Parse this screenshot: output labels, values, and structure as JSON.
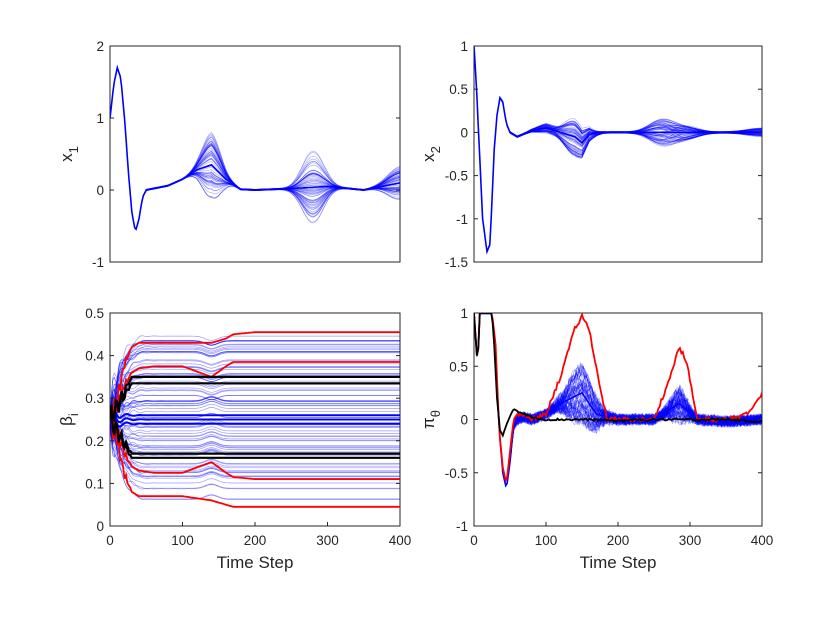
{
  "chart_data": [
    {
      "type": "line",
      "panel": "top-left",
      "xlabel": "",
      "ylabel": "x",
      "ylabel_sub": "1",
      "xlim": [
        0,
        400
      ],
      "ylim": [
        -1,
        2
      ],
      "xticks": [],
      "yticks": [
        "-1",
        "0",
        "1",
        "2"
      ],
      "grid": false,
      "series": [
        {
          "color": "#0000ff",
          "role": "ensemble (many thin trajectories)",
          "x": [
            0,
            5,
            10,
            15,
            20,
            25,
            30,
            35,
            40,
            45,
            50,
            60,
            80,
            100,
            120,
            140,
            160,
            180,
            200,
            250,
            300,
            350,
            400
          ],
          "y": [
            1.0,
            1.45,
            1.7,
            1.55,
            1.0,
            0.3,
            -0.3,
            -0.58,
            -0.4,
            -0.1,
            0.0,
            0.02,
            0.06,
            0.15,
            0.28,
            0.35,
            0.15,
            0.01,
            0.0,
            0.02,
            0.05,
            0.0,
            0.1
          ],
          "spread_peaks": [
            [
              140,
              0.85
            ],
            [
              280,
              0.6
            ],
            [
              400,
              0.35
            ]
          ]
        }
      ]
    },
    {
      "type": "line",
      "panel": "top-right",
      "xlabel": "",
      "ylabel": "x",
      "ylabel_sub": "2",
      "xlim": [
        0,
        400
      ],
      "ylim": [
        -1.5,
        1
      ],
      "xticks": [],
      "yticks": [
        "-1.5",
        "-1",
        "-0.5",
        "0",
        "0.5",
        "1"
      ],
      "grid": false,
      "series": [
        {
          "color": "#0000ff",
          "role": "ensemble (many thin trajectories)",
          "x": [
            0,
            3,
            8,
            12,
            18,
            22,
            25,
            28,
            32,
            36,
            40,
            45,
            50,
            60,
            80,
            100,
            120,
            140,
            150,
            160,
            180,
            200,
            250,
            280,
            300,
            350,
            400
          ],
          "y": [
            1.0,
            0.6,
            -0.3,
            -1.0,
            -1.38,
            -1.3,
            -0.8,
            -0.2,
            0.2,
            0.4,
            0.35,
            0.1,
            0.0,
            -0.05,
            0.02,
            0.05,
            0.0,
            -0.05,
            -0.12,
            -0.02,
            0.0,
            0.0,
            0.0,
            0.0,
            0.0,
            0.0,
            0.0
          ],
          "spread_peaks": [
            [
              100,
              0.1
            ],
            [
              140,
              0.2
            ],
            [
              260,
              0.15
            ],
            [
              290,
              0.1
            ],
            [
              400,
              0.05
            ]
          ]
        }
      ]
    },
    {
      "type": "line",
      "panel": "bottom-left",
      "xlabel": "Time Step",
      "ylabel": "β",
      "ylabel_sub": "i",
      "xlim": [
        0,
        400
      ],
      "ylim": [
        0,
        0.5
      ],
      "xticks": [
        "0",
        "100",
        "200",
        "300",
        "400"
      ],
      "yticks": [
        "0",
        "0.1",
        "0.2",
        "0.3",
        "0.4",
        "0.5"
      ],
      "grid": false,
      "series": [
        {
          "color": "#0000ff",
          "role": "ensemble (many thin trajectories)",
          "final_values_range": [
            0.06,
            0.45
          ],
          "initial_value": 0.25
        },
        {
          "color": "#ff0000",
          "role": "envelope",
          "x": [
            0,
            10,
            20,
            30,
            40,
            60,
            100,
            140,
            160,
            170,
            200,
            300,
            400
          ],
          "upper": [
            0.25,
            0.3,
            0.38,
            0.42,
            0.43,
            0.43,
            0.43,
            0.43,
            0.44,
            0.45,
            0.455,
            0.455,
            0.455
          ],
          "inner_upper": [
            0.25,
            0.28,
            0.33,
            0.36,
            0.37,
            0.375,
            0.375,
            0.35,
            0.375,
            0.385,
            0.385,
            0.385,
            0.385
          ],
          "inner_lower": [
            0.25,
            0.22,
            0.17,
            0.14,
            0.13,
            0.125,
            0.125,
            0.15,
            0.125,
            0.115,
            0.11,
            0.11,
            0.11
          ],
          "lower": [
            0.25,
            0.2,
            0.12,
            0.08,
            0.07,
            0.07,
            0.07,
            0.06,
            0.05,
            0.045,
            0.045,
            0.045,
            0.045
          ]
        },
        {
          "color": "#000000",
          "role": "reference levels",
          "levels": [
            0.335,
            0.35,
            0.16,
            0.17
          ],
          "start_x": 30
        }
      ]
    },
    {
      "type": "line",
      "panel": "bottom-right",
      "xlabel": "Time Step",
      "ylabel": "π",
      "ylabel_sub": "θ",
      "xlim": [
        0,
        400
      ],
      "ylim": [
        -1,
        1
      ],
      "xticks": [
        "0",
        "100",
        "200",
        "300",
        "400"
      ],
      "yticks": [
        "-1",
        "-0.5",
        "0",
        "0.5",
        "1"
      ],
      "grid": false,
      "series": [
        {
          "color": "#0000ff",
          "role": "ensemble (many thin trajectories)",
          "x": [
            0,
            5,
            8,
            12,
            25,
            30,
            35,
            40,
            45,
            50,
            55,
            60,
            70,
            80,
            100,
            120,
            150,
            170,
            200,
            250,
            285,
            310,
            350,
            400
          ],
          "y": [
            1.0,
            0.5,
            1.0,
            1.0,
            1.0,
            0.6,
            -0.1,
            -0.5,
            -0.65,
            -0.4,
            -0.05,
            0.0,
            0.02,
            0.0,
            0.05,
            0.15,
            0.25,
            0.05,
            0.0,
            0.0,
            0.15,
            0.0,
            -0.02,
            0.0
          ]
        },
        {
          "color": "#ff0000",
          "role": "upper envelope",
          "x": [
            0,
            5,
            8,
            12,
            25,
            30,
            35,
            40,
            45,
            50,
            55,
            60,
            80,
            100,
            120,
            140,
            150,
            160,
            175,
            185,
            200,
            250,
            270,
            285,
            295,
            310,
            350,
            380,
            400
          ],
          "y": [
            1.0,
            0.5,
            1.0,
            1.0,
            1.0,
            0.7,
            -0.1,
            -0.45,
            -0.6,
            -0.3,
            0.0,
            0.05,
            0.0,
            0.05,
            0.4,
            0.85,
            0.97,
            0.85,
            0.3,
            0.0,
            0.0,
            0.0,
            0.35,
            0.68,
            0.55,
            0.0,
            0.0,
            0.05,
            0.25
          ]
        },
        {
          "color": "#000000",
          "role": "mean",
          "x": [
            0,
            5,
            8,
            12,
            25,
            28,
            32,
            36,
            40,
            45,
            50,
            55,
            60,
            70,
            80,
            100,
            150,
            200,
            250,
            300,
            350,
            400
          ],
          "y": [
            1.0,
            0.5,
            1.0,
            1.0,
            1.0,
            0.7,
            0.2,
            -0.1,
            -0.15,
            -0.05,
            0.03,
            0.1,
            0.08,
            0.05,
            0.02,
            0.0,
            0.0,
            -0.01,
            0.0,
            0.0,
            0.0,
            -0.02
          ]
        }
      ]
    }
  ]
}
